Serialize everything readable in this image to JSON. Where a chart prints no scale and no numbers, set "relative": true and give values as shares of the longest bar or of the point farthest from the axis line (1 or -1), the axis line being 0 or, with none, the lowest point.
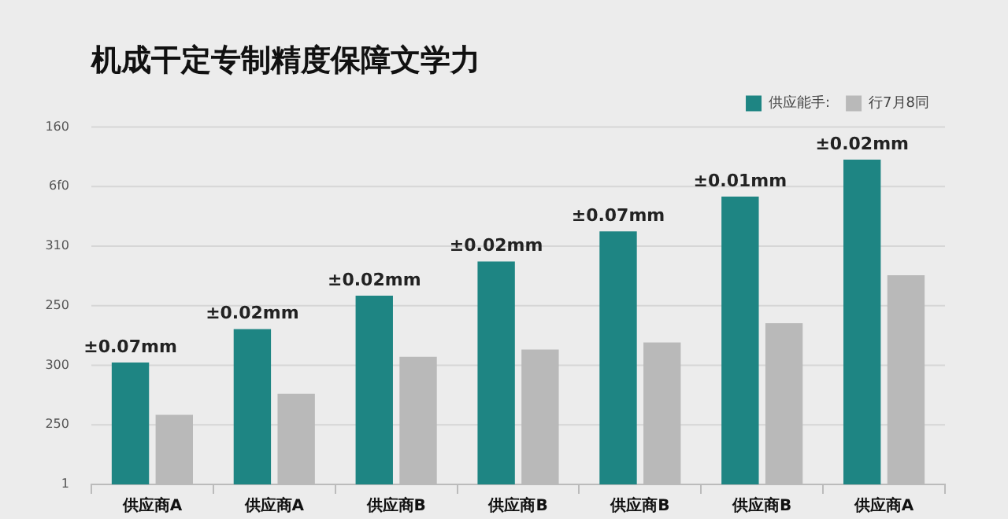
{
  "chart_data": {
    "type": "bar",
    "title": "机成干定专制精度保障文学力",
    "relative": true,
    "categories": [
      "供应商A",
      "供应商A",
      "供应商B",
      "供应商B",
      "供应商B",
      "供应商B",
      "供应商A"
    ],
    "series": [
      {
        "name": "供应能手:",
        "color": "#1e8583",
        "values": [
          0.375,
          0.478,
          0.581,
          0.686,
          0.779,
          0.886,
          1
        ]
      },
      {
        "name": "行7月8同",
        "color": "#b9b9b9",
        "values": [
          0.214,
          0.279,
          0.393,
          0.415,
          0.437,
          0.496,
          0.644
        ]
      }
    ],
    "annotations": [
      "160",
      "6f0",
      "310",
      "250",
      "300",
      "250",
      "1",
      "±0.07mm",
      "±0.02mm",
      "±0.02mm",
      "±0.02mm",
      "±0.07mm",
      "±0.01mm",
      "±0.02mm"
    ],
    "grid": "y",
    "legend": "top right"
  }
}
